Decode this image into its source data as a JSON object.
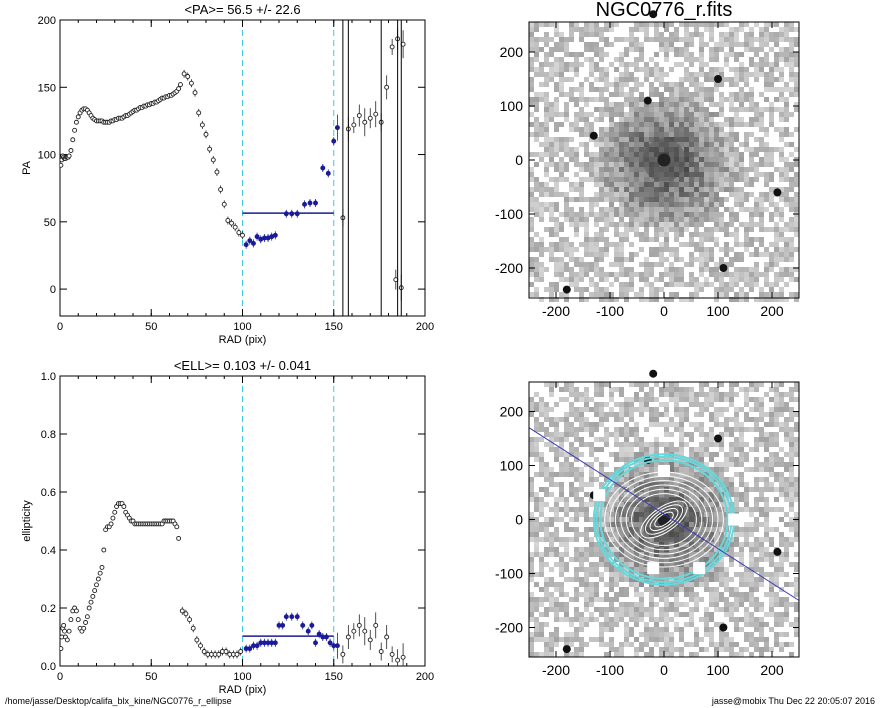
{
  "chart_data": [
    {
      "type": "scatter",
      "title": "<PA>=  56.5 +/-  22.6",
      "xlabel": "RAD (pix)",
      "ylabel": "PA",
      "xlim": [
        0,
        200
      ],
      "ylim": [
        -20,
        200
      ],
      "xticks": [
        0,
        50,
        100,
        150,
        200
      ],
      "yticks": [
        0,
        50,
        100,
        150,
        200
      ],
      "vlines_dashed": [
        100,
        150
      ],
      "mean_line": {
        "x0": 100,
        "x1": 150,
        "y": 56.5
      },
      "series": [
        {
          "points": [
            [
              0.5,
              92
            ],
            [
              1,
              96
            ],
            [
              1.5,
              99
            ],
            [
              2,
              98
            ],
            [
              2.5,
              97
            ],
            [
              3,
              97
            ],
            [
              3.5,
              98
            ],
            [
              4,
              98
            ],
            [
              4.5,
              98
            ],
            [
              5,
              99
            ],
            [
              6,
              103
            ],
            [
              7,
              111
            ],
            [
              8,
              118
            ],
            [
              9,
              124
            ],
            [
              10,
              128
            ],
            [
              11,
              131
            ],
            [
              12,
              133
            ],
            [
              13,
              134
            ],
            [
              14,
              134
            ],
            [
              15,
              133
            ],
            [
              16,
              131
            ],
            [
              17,
              129
            ],
            [
              18,
              127
            ],
            [
              19,
              126
            ],
            [
              20,
              125
            ],
            [
              21,
              125
            ],
            [
              22,
              125
            ],
            [
              23,
              125
            ],
            [
              24,
              124
            ],
            [
              25,
              124
            ],
            [
              26,
              124
            ],
            [
              27,
              124
            ],
            [
              28,
              125
            ],
            [
              29,
              125
            ],
            [
              30,
              126
            ],
            [
              31,
              126
            ],
            [
              32,
              127
            ],
            [
              33,
              127
            ],
            [
              34,
              127
            ],
            [
              35,
              128
            ],
            [
              36,
              129
            ],
            [
              37,
              129
            ],
            [
              38,
              130
            ],
            [
              39,
              131
            ],
            [
              40,
              132
            ],
            [
              41,
              133
            ],
            [
              42,
              133
            ],
            [
              43,
              134
            ],
            [
              44,
              135
            ],
            [
              45,
              135
            ],
            [
              46,
              136
            ],
            [
              47,
              136
            ],
            [
              48,
              137
            ],
            [
              49,
              137
            ],
            [
              50,
              138
            ],
            [
              51,
              138
            ],
            [
              52,
              139
            ],
            [
              53,
              139
            ],
            [
              54,
              140
            ],
            [
              55,
              141
            ],
            [
              56,
              142
            ],
            [
              57,
              142
            ],
            [
              58,
              143
            ],
            [
              59,
              143
            ],
            [
              60,
              144
            ],
            [
              61,
              144
            ],
            [
              62,
              145
            ],
            [
              63,
              146
            ],
            [
              64,
              147
            ],
            [
              65,
              149
            ],
            [
              66,
              152
            ],
            [
              68,
              160
            ],
            [
              70,
              158
            ],
            [
              72,
              153
            ],
            [
              74,
              146
            ],
            [
              76,
              131
            ],
            [
              78,
              122
            ],
            [
              80,
              115
            ],
            [
              82,
              104
            ],
            [
              84,
              96
            ],
            [
              86,
              87
            ],
            [
              88,
              74
            ],
            [
              90,
              63
            ],
            [
              92,
              51
            ],
            [
              94,
              49
            ],
            [
              96,
              46
            ],
            [
              98,
              42
            ],
            [
              100,
              40
            ]
          ]
        },
        {
          "points": [
            [
              102,
              33
            ],
            [
              104,
              36
            ],
            [
              106,
              34
            ],
            [
              108,
              39
            ],
            [
              110,
              37
            ],
            [
              112,
              38
            ],
            [
              114,
              38
            ],
            [
              116,
              39
            ],
            [
              118,
              40
            ]
          ]
        },
        {
          "points": [
            [
              124,
              56
            ],
            [
              127,
              56
            ],
            [
              130,
              56
            ],
            [
              134,
              63
            ],
            [
              137,
              64
            ],
            [
              140,
              64
            ],
            [
              144,
              90
            ],
            [
              147,
              86
            ],
            [
              150,
              110
            ],
            [
              152,
              120
            ]
          ]
        },
        {
          "points": [
            [
              155,
              53
            ],
            [
              158,
              119
            ],
            [
              161,
              122
            ],
            [
              164,
              129
            ],
            [
              167,
              124
            ],
            [
              170,
              127
            ],
            [
              173,
              130
            ],
            [
              176,
              124
            ],
            [
              179,
              150
            ],
            [
              182,
              180
            ],
            [
              184,
              7
            ],
            [
              185,
              186
            ],
            [
              187,
              1
            ],
            [
              188,
              182
            ]
          ]
        }
      ]
    },
    {
      "type": "scatter",
      "title": "<ELL>= 0.103 +/-  0.041",
      "xlabel": "RAD (pix)",
      "ylabel": "ellipticity",
      "xlim": [
        0,
        200
      ],
      "ylim": [
        0,
        1.0
      ],
      "xticks": [
        0,
        50,
        100,
        150,
        200
      ],
      "yticks": [
        0.0,
        0.2,
        0.4,
        0.6,
        0.8,
        1.0
      ],
      "vlines_dashed": [
        100,
        150
      ],
      "mean_line": {
        "x0": 100,
        "x1": 150,
        "y": 0.103
      },
      "series": [
        {
          "points": [
            [
              0.5,
              0.06
            ],
            [
              1,
              0.1
            ],
            [
              1.5,
              0.13
            ],
            [
              2,
              0.14
            ],
            [
              2.5,
              0.12
            ],
            [
              3,
              0.1
            ],
            [
              4,
              0.09
            ],
            [
              5,
              0.12
            ],
            [
              6,
              0.16
            ],
            [
              7,
              0.19
            ],
            [
              8,
              0.2
            ],
            [
              9,
              0.19
            ],
            [
              10,
              0.16
            ],
            [
              11,
              0.13
            ],
            [
              12,
              0.12
            ],
            [
              13,
              0.13
            ],
            [
              14,
              0.15
            ],
            [
              15,
              0.17
            ],
            [
              16,
              0.2
            ],
            [
              17,
              0.22
            ],
            [
              18,
              0.24
            ],
            [
              19,
              0.26
            ],
            [
              20,
              0.28
            ],
            [
              21,
              0.3
            ],
            [
              22,
              0.32
            ],
            [
              23,
              0.34
            ],
            [
              24,
              0.4
            ],
            [
              25,
              0.47
            ],
            [
              26,
              0.48
            ],
            [
              27,
              0.48
            ],
            [
              28,
              0.49
            ],
            [
              29,
              0.51
            ],
            [
              30,
              0.53
            ],
            [
              31,
              0.55
            ],
            [
              32,
              0.56
            ],
            [
              33,
              0.56
            ],
            [
              34,
              0.56
            ],
            [
              35,
              0.55
            ],
            [
              36,
              0.53
            ],
            [
              37,
              0.52
            ],
            [
              38,
              0.51
            ],
            [
              39,
              0.5
            ],
            [
              40,
              0.5
            ],
            [
              41,
              0.49
            ],
            [
              42,
              0.49
            ],
            [
              43,
              0.49
            ],
            [
              44,
              0.49
            ],
            [
              45,
              0.49
            ],
            [
              46,
              0.49
            ],
            [
              47,
              0.49
            ],
            [
              48,
              0.49
            ],
            [
              49,
              0.49
            ],
            [
              50,
              0.49
            ],
            [
              51,
              0.49
            ],
            [
              52,
              0.49
            ],
            [
              53,
              0.49
            ],
            [
              54,
              0.49
            ],
            [
              55,
              0.49
            ],
            [
              56,
              0.49
            ],
            [
              57,
              0.5
            ],
            [
              58,
              0.5
            ],
            [
              59,
              0.5
            ],
            [
              60,
              0.5
            ],
            [
              61,
              0.5
            ],
            [
              62,
              0.5
            ],
            [
              63,
              0.49
            ],
            [
              64,
              0.48
            ],
            [
              65,
              0.44
            ],
            [
              67,
              0.19
            ],
            [
              69,
              0.18
            ],
            [
              71,
              0.16
            ],
            [
              73,
              0.13
            ],
            [
              75,
              0.09
            ],
            [
              77,
              0.07
            ],
            [
              79,
              0.05
            ],
            [
              81,
              0.04
            ],
            [
              83,
              0.04
            ],
            [
              85,
              0.04
            ],
            [
              87,
              0.04
            ],
            [
              89,
              0.05
            ],
            [
              91,
              0.05
            ],
            [
              93,
              0.04
            ],
            [
              95,
              0.04
            ],
            [
              97,
              0.04
            ],
            [
              99,
              0.05
            ]
          ]
        },
        {
          "points": [
            [
              102,
              0.06
            ],
            [
              104,
              0.06
            ],
            [
              106,
              0.07
            ],
            [
              108,
              0.07
            ],
            [
              110,
              0.08
            ],
            [
              112,
              0.08
            ],
            [
              114,
              0.08
            ],
            [
              116,
              0.08
            ],
            [
              118,
              0.08
            ],
            [
              120,
              0.14
            ],
            [
              122,
              0.14
            ],
            [
              124,
              0.17
            ],
            [
              127,
              0.17
            ],
            [
              130,
              0.17
            ],
            [
              133,
              0.14
            ],
            [
              136,
              0.12
            ],
            [
              138,
              0.14
            ],
            [
              140,
              0.08
            ],
            [
              142,
              0.11
            ],
            [
              144,
              0.1
            ],
            [
              146,
              0.1
            ],
            [
              148,
              0.08
            ],
            [
              150,
              0.07
            ],
            [
              152,
              0.07
            ]
          ]
        },
        {
          "points": [
            [
              155,
              0.04
            ],
            [
              158,
              0.1
            ],
            [
              161,
              0.12
            ],
            [
              164,
              0.14
            ],
            [
              167,
              0.12
            ],
            [
              170,
              0.09
            ],
            [
              173,
              0.14
            ],
            [
              176,
              0.05
            ],
            [
              179,
              0.1
            ],
            [
              182,
              0.04
            ],
            [
              185,
              0.02
            ],
            [
              188,
              0.03
            ]
          ]
        }
      ]
    }
  ],
  "images": [
    {
      "title": "NGC0776_r.fits",
      "xticks": [
        -200,
        -100,
        0,
        100,
        200
      ],
      "yticks": [
        -200,
        -100,
        0,
        100,
        200
      ]
    },
    {
      "title": "",
      "xticks": [
        -200,
        -100,
        0,
        100,
        200
      ],
      "yticks": [
        -200,
        -100,
        0,
        100,
        200
      ]
    }
  ],
  "colors": {
    "dashed": "#3fc8e0",
    "mean_line": "#1a1a9a",
    "fit_points": "#1a1a9a",
    "ellipse_cyan": "#66d8dc",
    "pa_line": "#3a3ab8"
  },
  "footer": {
    "path": "/home/jasse/Desktop/califa_blx_kine/NGC0776_r_ellipse",
    "stamp": "jasse@mobix  Thu Dec 22 20:05:07 2016"
  }
}
